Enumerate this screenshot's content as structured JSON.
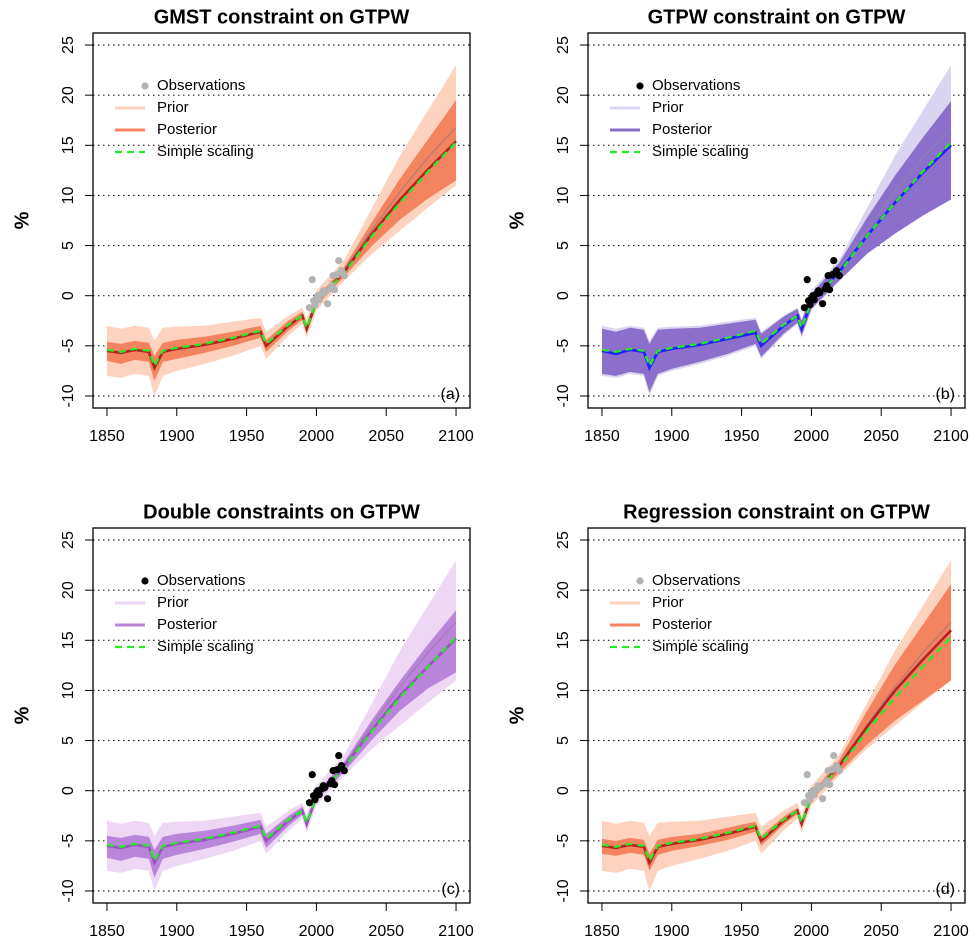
{
  "chart_data": [
    {
      "type": "line",
      "title": "GMST constraint on GTPW",
      "y_label": "%",
      "panel_label": "(a)",
      "xlim": [
        1840,
        2110
      ],
      "ylim": [
        -11.2,
        26.2
      ],
      "xticks": [
        1850,
        1900,
        1950,
        2000,
        2050,
        2100
      ],
      "yticks": [
        -10,
        -5,
        0,
        5,
        10,
        15,
        20,
        25
      ],
      "grid": "y",
      "legend": "top-left",
      "x": [
        1850,
        1860,
        1870,
        1880,
        1884,
        1890,
        1900,
        1920,
        1940,
        1960,
        1964,
        1980,
        1990,
        1993,
        2000,
        2020,
        2040,
        2060,
        2080,
        2100
      ],
      "series": [
        {
          "name": "Observations",
          "color": "#b3b3b3",
          "x": [
            1995,
            1997,
            1998,
            1999,
            2000,
            2001,
            2002,
            2004,
            2005,
            2006,
            2008,
            2010,
            2011,
            2012,
            2013,
            2015,
            2016,
            2018,
            2020
          ],
          "values": [
            -1.2,
            1.6,
            -0.5,
            -0.9,
            -0.3,
            0,
            -0.4,
            0.2,
            0.5,
            0.3,
            -0.8,
            0.7,
            1,
            2,
            0.6,
            2.1,
            3.5,
            2.5,
            2
          ]
        },
        {
          "name": "Prior",
          "color": "#fdd3bf",
          "line_color": "#b07a7a",
          "lower": [
            -8,
            -8.2,
            -7.8,
            -8,
            -10,
            -8,
            -7.5,
            -6.8,
            -6,
            -5,
            -6.3,
            -4,
            -2.8,
            -4.2,
            -1.5,
            1.5,
            4.2,
            6.5,
            8.8,
            11
          ],
          "upper": [
            -3,
            -3.3,
            -3,
            -3.2,
            -4.5,
            -3.2,
            -3.1,
            -3,
            -2.6,
            -2.2,
            -3.6,
            -2,
            -1.2,
            -2.4,
            0.5,
            3.6,
            8.8,
            14,
            18.5,
            23
          ],
          "values": [
            -5.5,
            -5.8,
            -5.4,
            -5.6,
            -7.2,
            -5.6,
            -5.3,
            -4.9,
            -4.3,
            -3.6,
            -5,
            -3,
            -2,
            -3.3,
            -0.6,
            2.6,
            6.6,
            10.4,
            13.8,
            16.8
          ]
        },
        {
          "name": "Posterior",
          "color": "#f4845f",
          "line_color": "#b22222",
          "lower": [
            -6.5,
            -6.8,
            -6.4,
            -6.6,
            -8.5,
            -6.6,
            -6.3,
            -5.7,
            -5,
            -4.2,
            -5.6,
            -3.5,
            -2.4,
            -3.8,
            -1,
            1.9,
            5,
            7.6,
            9.7,
            11.5
          ],
          "upper": [
            -4.6,
            -4.8,
            -4.5,
            -4.7,
            -6,
            -4.7,
            -4.4,
            -4.1,
            -3.6,
            -3,
            -4.4,
            -2.5,
            -1.6,
            -2.8,
            -0.2,
            2.9,
            7.4,
            11.7,
            15.6,
            19.5
          ],
          "values": [
            -5.5,
            -5.7,
            -5.4,
            -5.6,
            -7.2,
            -5.6,
            -5.3,
            -4.9,
            -4.3,
            -3.6,
            -5,
            -3,
            -2,
            -3.3,
            -0.6,
            2.4,
            6.2,
            9.6,
            12.6,
            15.4
          ]
        },
        {
          "name": "Simple scaling",
          "color": "#22ee22",
          "values": [
            -5.4,
            -5.6,
            -5.3,
            -5.5,
            -7,
            -5.5,
            -5.2,
            -4.8,
            -4.2,
            -3.5,
            -4.8,
            -2.9,
            -2,
            -3.2,
            -0.6,
            2.3,
            6,
            9.3,
            12.4,
            15.3
          ]
        }
      ]
    },
    {
      "type": "line",
      "title": "GTPW constraint on GTPW",
      "y_label": "%",
      "panel_label": "(b)",
      "xlim": [
        1840,
        2110
      ],
      "ylim": [
        -11.2,
        26.2
      ],
      "xticks": [
        1850,
        1900,
        1950,
        2000,
        2050,
        2100
      ],
      "yticks": [
        -10,
        -5,
        0,
        5,
        10,
        15,
        20,
        25
      ],
      "grid": "y",
      "legend": "top-left",
      "x": [
        1850,
        1860,
        1870,
        1880,
        1884,
        1890,
        1900,
        1920,
        1940,
        1960,
        1964,
        1980,
        1990,
        1993,
        2000,
        2020,
        2040,
        2060,
        2080,
        2100
      ],
      "series": [
        {
          "name": "Observations",
          "color": "#000000",
          "x": [
            1995,
            1997,
            1998,
            1999,
            2000,
            2001,
            2002,
            2004,
            2005,
            2006,
            2008,
            2010,
            2011,
            2012,
            2013,
            2015,
            2016,
            2018,
            2020
          ],
          "values": [
            -1.2,
            1.6,
            -0.5,
            -0.9,
            -0.3,
            0,
            -0.4,
            0.2,
            0.5,
            0.3,
            -0.8,
            0.7,
            1,
            2,
            0.6,
            2.1,
            3.5,
            2.5,
            2
          ]
        },
        {
          "name": "Prior",
          "color": "#d9d4ef",
          "line_color": "#8a82b0",
          "lower": [
            -8,
            -8.2,
            -7.8,
            -8,
            -10,
            -8,
            -7.5,
            -6.8,
            -6,
            -5,
            -6.3,
            -4,
            -2.8,
            -4.2,
            -1.5,
            1.5,
            4.2,
            6.5,
            8.8,
            11
          ],
          "upper": [
            -3,
            -3.3,
            -3,
            -3.2,
            -4.5,
            -3.2,
            -3.1,
            -3,
            -2.6,
            -2.2,
            -3.6,
            -2,
            -1.2,
            -2.4,
            0.5,
            3.6,
            8.8,
            14,
            18.5,
            23
          ],
          "values": [
            -5.5,
            -5.8,
            -5.4,
            -5.6,
            -7.2,
            -5.6,
            -5.3,
            -4.9,
            -4.3,
            -3.6,
            -5,
            -3,
            -2,
            -3.3,
            -0.6,
            2.6,
            6.6,
            10.4,
            13.8,
            16.8
          ]
        },
        {
          "name": "Posterior",
          "color": "#8b6fcb",
          "line_color": "#1f1fff",
          "lower": [
            -7.8,
            -8,
            -7.6,
            -7.8,
            -9.6,
            -7.8,
            -7.3,
            -6.6,
            -5.8,
            -4.8,
            -6.1,
            -3.8,
            -2.7,
            -4,
            -1.3,
            1.5,
            4.2,
            6.2,
            8,
            9.6
          ],
          "upper": [
            -3.3,
            -3.6,
            -3.2,
            -3.4,
            -4.8,
            -3.4,
            -3.3,
            -3.2,
            -2.8,
            -2.4,
            -3.8,
            -2.1,
            -1.3,
            -2.5,
            0.2,
            3.3,
            7.8,
            12,
            15.8,
            19.4
          ],
          "values": [
            -5.5,
            -5.8,
            -5.4,
            -5.6,
            -7.2,
            -5.6,
            -5.3,
            -4.9,
            -4.3,
            -3.7,
            -5,
            -3,
            -2,
            -3.3,
            -0.6,
            2.4,
            6,
            9.3,
            12.3,
            15
          ]
        },
        {
          "name": "Simple scaling",
          "color": "#22ee22",
          "values": [
            -5.4,
            -5.6,
            -5.3,
            -5.5,
            -7,
            -5.5,
            -5.2,
            -4.8,
            -4.2,
            -3.5,
            -4.8,
            -2.9,
            -2,
            -3.2,
            -0.6,
            2.3,
            6,
            9.3,
            12.4,
            15.3
          ]
        }
      ]
    },
    {
      "type": "line",
      "title": "Double constraints on GTPW",
      "y_label": "%",
      "panel_label": "(c)",
      "xlim": [
        1840,
        2110
      ],
      "ylim": [
        -11.2,
        26.2
      ],
      "xticks": [
        1850,
        1900,
        1950,
        2000,
        2050,
        2100
      ],
      "yticks": [
        -10,
        -5,
        0,
        5,
        10,
        15,
        20,
        25
      ],
      "grid": "y",
      "legend": "top-left",
      "x": [
        1850,
        1860,
        1870,
        1880,
        1884,
        1890,
        1900,
        1920,
        1940,
        1960,
        1964,
        1980,
        1990,
        1993,
        2000,
        2020,
        2040,
        2060,
        2080,
        2100
      ],
      "series": [
        {
          "name": "Observations",
          "color": "#000000",
          "x": [
            1995,
            1997,
            1998,
            1999,
            2000,
            2001,
            2002,
            2004,
            2005,
            2006,
            2008,
            2010,
            2011,
            2012,
            2013,
            2015,
            2016,
            2018,
            2020
          ],
          "values": [
            -1.2,
            1.6,
            -0.5,
            -0.9,
            -0.3,
            0,
            -0.4,
            0.2,
            0.5,
            0.3,
            -0.8,
            0.7,
            1,
            2,
            0.6,
            2.1,
            3.5,
            2.5,
            2
          ]
        },
        {
          "name": "Prior",
          "color": "#eed7f5",
          "line_color": "#a47ab5",
          "lower": [
            -8,
            -8.2,
            -7.8,
            -8,
            -10,
            -8,
            -7.5,
            -6.8,
            -6,
            -5,
            -6.3,
            -4,
            -2.8,
            -4.2,
            -1.5,
            1.5,
            4.2,
            6.5,
            8.8,
            11
          ],
          "upper": [
            -3,
            -3.3,
            -3,
            -3.2,
            -4.5,
            -3.2,
            -3.1,
            -3,
            -2.6,
            -2.2,
            -3.6,
            -2,
            -1.2,
            -2.4,
            0.5,
            3.6,
            8.8,
            14,
            18.5,
            23
          ],
          "values": [
            -5.5,
            -5.8,
            -5.4,
            -5.6,
            -7.2,
            -5.6,
            -5.3,
            -4.9,
            -4.3,
            -3.6,
            -5,
            -3,
            -2,
            -3.3,
            -0.6,
            2.6,
            6.6,
            10.4,
            13.8,
            16.8
          ]
        },
        {
          "name": "Posterior",
          "color": "#b985da",
          "line_color": "#9b50c4",
          "lower": [
            -6.7,
            -7,
            -6.6,
            -6.8,
            -8.7,
            -6.8,
            -6.4,
            -5.8,
            -5.1,
            -4.3,
            -5.7,
            -3.5,
            -2.4,
            -3.8,
            -1,
            1.9,
            5.1,
            8,
            10.2,
            11.8
          ],
          "upper": [
            -4.5,
            -4.7,
            -4.4,
            -4.6,
            -5.9,
            -4.6,
            -4.3,
            -4,
            -3.5,
            -2.9,
            -4.3,
            -2.5,
            -1.6,
            -2.8,
            -0.2,
            2.9,
            7.1,
            11,
            14.6,
            18
          ],
          "values": [
            -5.5,
            -5.7,
            -5.4,
            -5.6,
            -7.2,
            -5.6,
            -5.3,
            -4.9,
            -4.3,
            -3.6,
            -5,
            -3,
            -2,
            -3.3,
            -0.6,
            2.4,
            6.1,
            9.5,
            12.4,
            15.2
          ]
        },
        {
          "name": "Simple scaling",
          "color": "#22ee22",
          "values": [
            -5.4,
            -5.6,
            -5.3,
            -5.5,
            -7,
            -5.5,
            -5.2,
            -4.8,
            -4.2,
            -3.5,
            -4.8,
            -2.9,
            -2,
            -3.2,
            -0.6,
            2.3,
            6,
            9.3,
            12.4,
            15.3
          ]
        }
      ]
    },
    {
      "type": "line",
      "title": "Regression constraint on GTPW",
      "y_label": "%",
      "panel_label": "(d)",
      "xlim": [
        1840,
        2110
      ],
      "ylim": [
        -11.2,
        26.2
      ],
      "xticks": [
        1850,
        1900,
        1950,
        2000,
        2050,
        2100
      ],
      "yticks": [
        -10,
        -5,
        0,
        5,
        10,
        15,
        20,
        25
      ],
      "grid": "y",
      "legend": "top-left",
      "x": [
        1850,
        1860,
        1870,
        1880,
        1884,
        1890,
        1900,
        1920,
        1940,
        1960,
        1964,
        1980,
        1990,
        1993,
        2000,
        2020,
        2040,
        2060,
        2080,
        2100
      ],
      "series": [
        {
          "name": "Observations",
          "color": "#b3b3b3",
          "x": [
            1995,
            1997,
            1998,
            1999,
            2000,
            2001,
            2002,
            2004,
            2005,
            2006,
            2008,
            2010,
            2011,
            2012,
            2013,
            2015,
            2016,
            2018,
            2020
          ],
          "values": [
            -1.2,
            1.6,
            -0.5,
            -0.9,
            -0.3,
            0,
            -0.4,
            0.2,
            0.5,
            0.3,
            -0.8,
            0.7,
            1,
            2,
            0.6,
            2.1,
            3.5,
            2.5,
            2
          ]
        },
        {
          "name": "Prior",
          "color": "#fdd3bf",
          "line_color": "#b07a7a",
          "lower": [
            -8,
            -8.2,
            -7.8,
            -8,
            -10,
            -8,
            -7.5,
            -6.8,
            -6,
            -5,
            -6.3,
            -4,
            -2.8,
            -4.2,
            -1.5,
            1.5,
            4.2,
            6.5,
            8.8,
            11
          ],
          "upper": [
            -3,
            -3.3,
            -3,
            -3.2,
            -4.5,
            -3.2,
            -3.1,
            -3,
            -2.6,
            -2.2,
            -3.6,
            -2,
            -1.2,
            -2.4,
            0.5,
            3.6,
            8.8,
            14,
            18.5,
            23
          ],
          "values": [
            -5.5,
            -5.8,
            -5.4,
            -5.6,
            -7.2,
            -5.6,
            -5.3,
            -4.9,
            -4.3,
            -3.6,
            -5,
            -3,
            -2,
            -3.3,
            -0.6,
            2.6,
            6.6,
            10.4,
            13.8,
            16.8
          ]
        },
        {
          "name": "Posterior",
          "color": "#f4845f",
          "line_color": "#b22222",
          "lower": [
            -6.3,
            -6.5,
            -6.2,
            -6.4,
            -8,
            -6.4,
            -6,
            -5.5,
            -4.9,
            -4.1,
            -5.5,
            -3.4,
            -2.3,
            -3.7,
            -0.9,
            1.8,
            4.6,
            7,
            9,
            11
          ],
          "upper": [
            -4.8,
            -5,
            -4.7,
            -4.9,
            -6.3,
            -4.9,
            -4.6,
            -4.3,
            -3.7,
            -3.1,
            -4.5,
            -2.6,
            -1.7,
            -2.9,
            -0.3,
            3.1,
            8,
            12.6,
            16.6,
            20.6
          ],
          "values": [
            -5.5,
            -5.7,
            -5.4,
            -5.6,
            -7.2,
            -5.6,
            -5.3,
            -4.9,
            -4.3,
            -3.6,
            -5,
            -3,
            -2,
            -3.3,
            -0.6,
            2.5,
            6.4,
            10,
            13.1,
            16
          ]
        },
        {
          "name": "Simple scaling",
          "color": "#22ee22",
          "values": [
            -5.4,
            -5.6,
            -5.3,
            -5.5,
            -7,
            -5.5,
            -5.2,
            -4.8,
            -4.2,
            -3.5,
            -4.8,
            -2.9,
            -2,
            -3.2,
            -0.6,
            2.3,
            6,
            9.3,
            12.4,
            15.3
          ]
        }
      ]
    }
  ]
}
